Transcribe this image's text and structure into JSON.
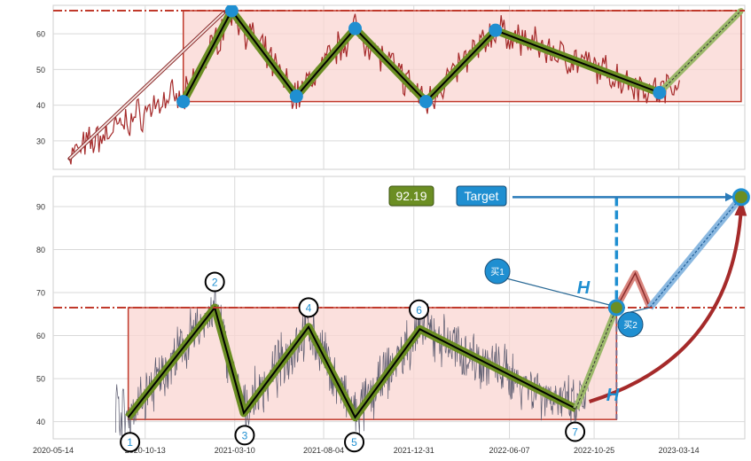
{
  "chart_data": [
    {
      "panel": "top",
      "type": "line",
      "ylim": [
        22,
        68
      ],
      "xlim": [
        "2020-05-14",
        "2023-07-01"
      ],
      "yticks": [
        30,
        40,
        50,
        60
      ],
      "grid": true,
      "colors": {
        "price": "#a52a2a",
        "box_fill": "#f9d6d1",
        "box_stroke": "#c0392b",
        "zigzag": "#6b8e23",
        "node": "#1f8fd1",
        "ref_line": "#c0392b"
      },
      "resistance": 66.5,
      "support": 41,
      "box": {
        "x0": "2020-12-15",
        "x1": "2023-06-25"
      },
      "zigzag": [
        {
          "x": "2020-12-15",
          "y": 41
        },
        {
          "x": "2021-03-05",
          "y": 66.5
        },
        {
          "x": "2021-06-20",
          "y": 42.5
        },
        {
          "x": "2021-09-25",
          "y": 61.5
        },
        {
          "x": "2022-01-20",
          "y": 41
        },
        {
          "x": "2022-05-15",
          "y": 61
        },
        {
          "x": "2023-02-10",
          "y": 43.5
        }
      ],
      "projection": [
        {
          "x": "2023-02-10",
          "y": 43.5
        },
        {
          "x": "2023-06-25",
          "y": 66.5
        }
      ],
      "trend_line": [
        {
          "x": "2020-06-10",
          "y": 25
        },
        {
          "x": "2021-02-20",
          "y": 66
        }
      ]
    },
    {
      "panel": "bottom",
      "type": "line",
      "ylim": [
        36,
        97
      ],
      "xlim": [
        "2020-05-14",
        "2023-07-01"
      ],
      "xticks": [
        "2020-05-14",
        "2020-10-13",
        "2021-03-10",
        "2021-08-04",
        "2021-12-31",
        "2022-06-07",
        "2022-10-25",
        "2023-03-14"
      ],
      "yticks": [
        40,
        50,
        60,
        70,
        80,
        90
      ],
      "grid": true,
      "colors": {
        "price": "#5a5a6e",
        "box_fill": "#f9d6d1",
        "box_stroke": "#c0392b",
        "zigzag": "#6b8e23",
        "label": "#1f8fd1",
        "target_box": "#1f8fd1",
        "value_box": "#6b8e23",
        "arc": "#a52a2a"
      },
      "resistance": 66.5,
      "support": 40.5,
      "box": {
        "x0": "2020-09-15",
        "x1": "2022-12-01"
      },
      "points": [
        {
          "label": "1",
          "x": "2020-09-15",
          "y": 41
        },
        {
          "label": "2",
          "x": "2021-02-05",
          "y": 66.5
        },
        {
          "label": "3",
          "x": "2021-03-25",
          "y": 42
        },
        {
          "label": "4",
          "x": "2021-07-10",
          "y": 62
        },
        {
          "label": "5",
          "x": "2021-09-25",
          "y": 41
        },
        {
          "label": "6",
          "x": "2022-01-10",
          "y": 61.5
        },
        {
          "label": "7",
          "x": "2022-09-25",
          "y": 43
        }
      ],
      "projection": [
        {
          "x": "2022-09-25",
          "y": 43
        },
        {
          "x": "2022-12-01",
          "y": 66.5
        }
      ],
      "pullback": [
        {
          "x": "2022-12-01",
          "y": 66.5
        },
        {
          "x": "2023-01-01",
          "y": 74.5
        },
        {
          "x": "2023-01-25",
          "y": 66.5
        }
      ],
      "target_path": [
        {
          "x": "2023-01-25",
          "y": 66.5
        },
        {
          "x": "2023-06-25",
          "y": 92.19
        }
      ],
      "target_value": "92.19",
      "target_label": "Target",
      "buy1_label": "买1",
      "buy2_label": "买2",
      "height_label": "H",
      "buy1": {
        "x": "2022-12-01",
        "y": 66.5
      },
      "buy2": {
        "x": "2023-01-25",
        "y": 66.5
      },
      "target_point": {
        "x": "2023-06-25",
        "y": 92.19
      }
    }
  ]
}
